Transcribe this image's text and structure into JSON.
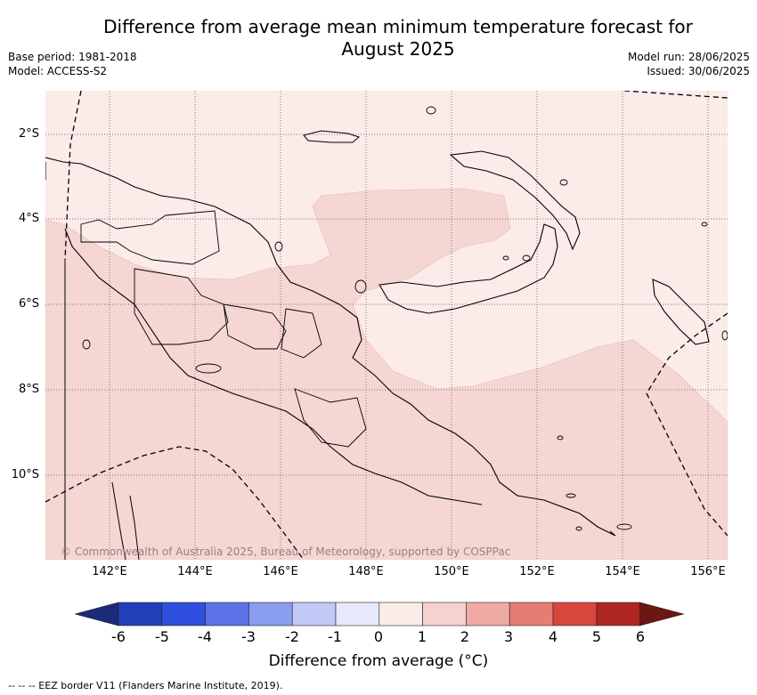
{
  "title_line1": "Difference from average mean minimum temperature forecast for",
  "title_line2": "August 2025",
  "meta_left": {
    "base_period": "Base period: 1981-2018",
    "model": "Model: ACCESS-S2"
  },
  "meta_right": {
    "model_run": "Model run: 28/06/2025",
    "issued": "Issued: 30/06/2025"
  },
  "map": {
    "copyright": "© Commonwealth of Australia 2025, Bureau of Meteorology, supported by COSPPac",
    "lat_labels": [
      "2°S",
      "4°S",
      "6°S",
      "8°S",
      "10°S"
    ],
    "lon_labels": [
      "142°E",
      "144°E",
      "146°E",
      "148°E",
      "150°E",
      "152°E",
      "154°E",
      "156°E"
    ],
    "colors": {
      "anomaly_0_to_1": "#fbebe9",
      "anomaly_1_to_2": "#f5d6d3",
      "coast": "#000000"
    }
  },
  "colorbar": {
    "tick_labels": [
      "-6",
      "-5",
      "-4",
      "-3",
      "-2",
      "-1",
      "0",
      "1",
      "2",
      "3",
      "4",
      "5",
      "6"
    ],
    "colors": [
      "#1b2a7a",
      "#2340b8",
      "#2f4fde",
      "#5a72e6",
      "#8a9ef0",
      "#c1c9f6",
      "#e6e9fb",
      "#fcece9",
      "#f5d2ce",
      "#f0aaa4",
      "#e57d75",
      "#d8473d",
      "#ad2620",
      "#6e1612"
    ],
    "title": "Difference from average (°C)"
  },
  "footer": "--  --  -- EEZ border V11 (Flanders Marine Institute, 2019)."
}
